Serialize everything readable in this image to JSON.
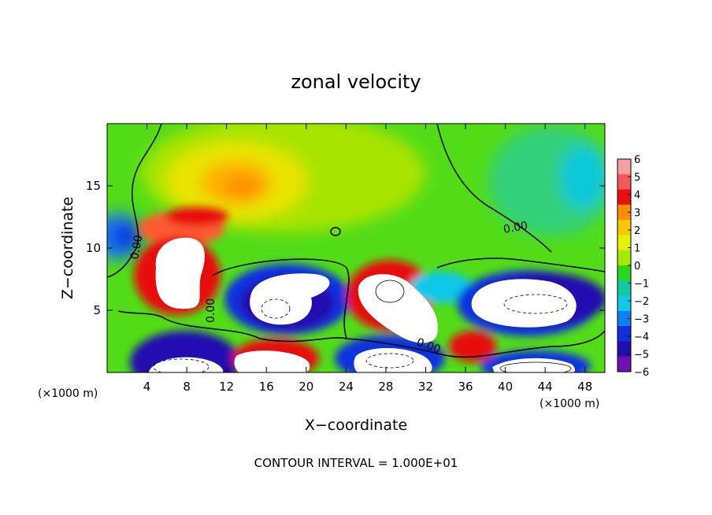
{
  "chart_data": {
    "type": "heatmap",
    "title": "zonal velocity",
    "xlabel": "X−coordinate",
    "ylabel": "Z−coordinate",
    "x_unit_left": "(×1000 m)",
    "x_unit_right": "(×1000 m)",
    "footer": "CONTOUR INTERVAL = 1.000E+01",
    "xlim": [
      0,
      50
    ],
    "ylim": [
      0,
      20
    ],
    "x_ticks": [
      4,
      8,
      12,
      16,
      20,
      24,
      28,
      32,
      36,
      40,
      44,
      48
    ],
    "y_ticks": [
      5,
      10,
      15
    ],
    "colorbar": {
      "ticks": [
        6,
        5,
        4,
        3,
        2,
        1,
        0,
        -1,
        -2,
        -3,
        -4,
        -5,
        -6
      ],
      "colors": [
        "#f5a0a0",
        "#f55a5a",
        "#e81010",
        "#ff8c00",
        "#f8c800",
        "#e8f000",
        "#a8e800",
        "#2ad81e",
        "#10c9a0",
        "#10c8e8",
        "#1080f0",
        "#1030e0",
        "#2010b0",
        "#7010b0"
      ]
    },
    "contour_labels": [
      "0.00",
      "0.00",
      "0.00",
      "0.00"
    ]
  }
}
